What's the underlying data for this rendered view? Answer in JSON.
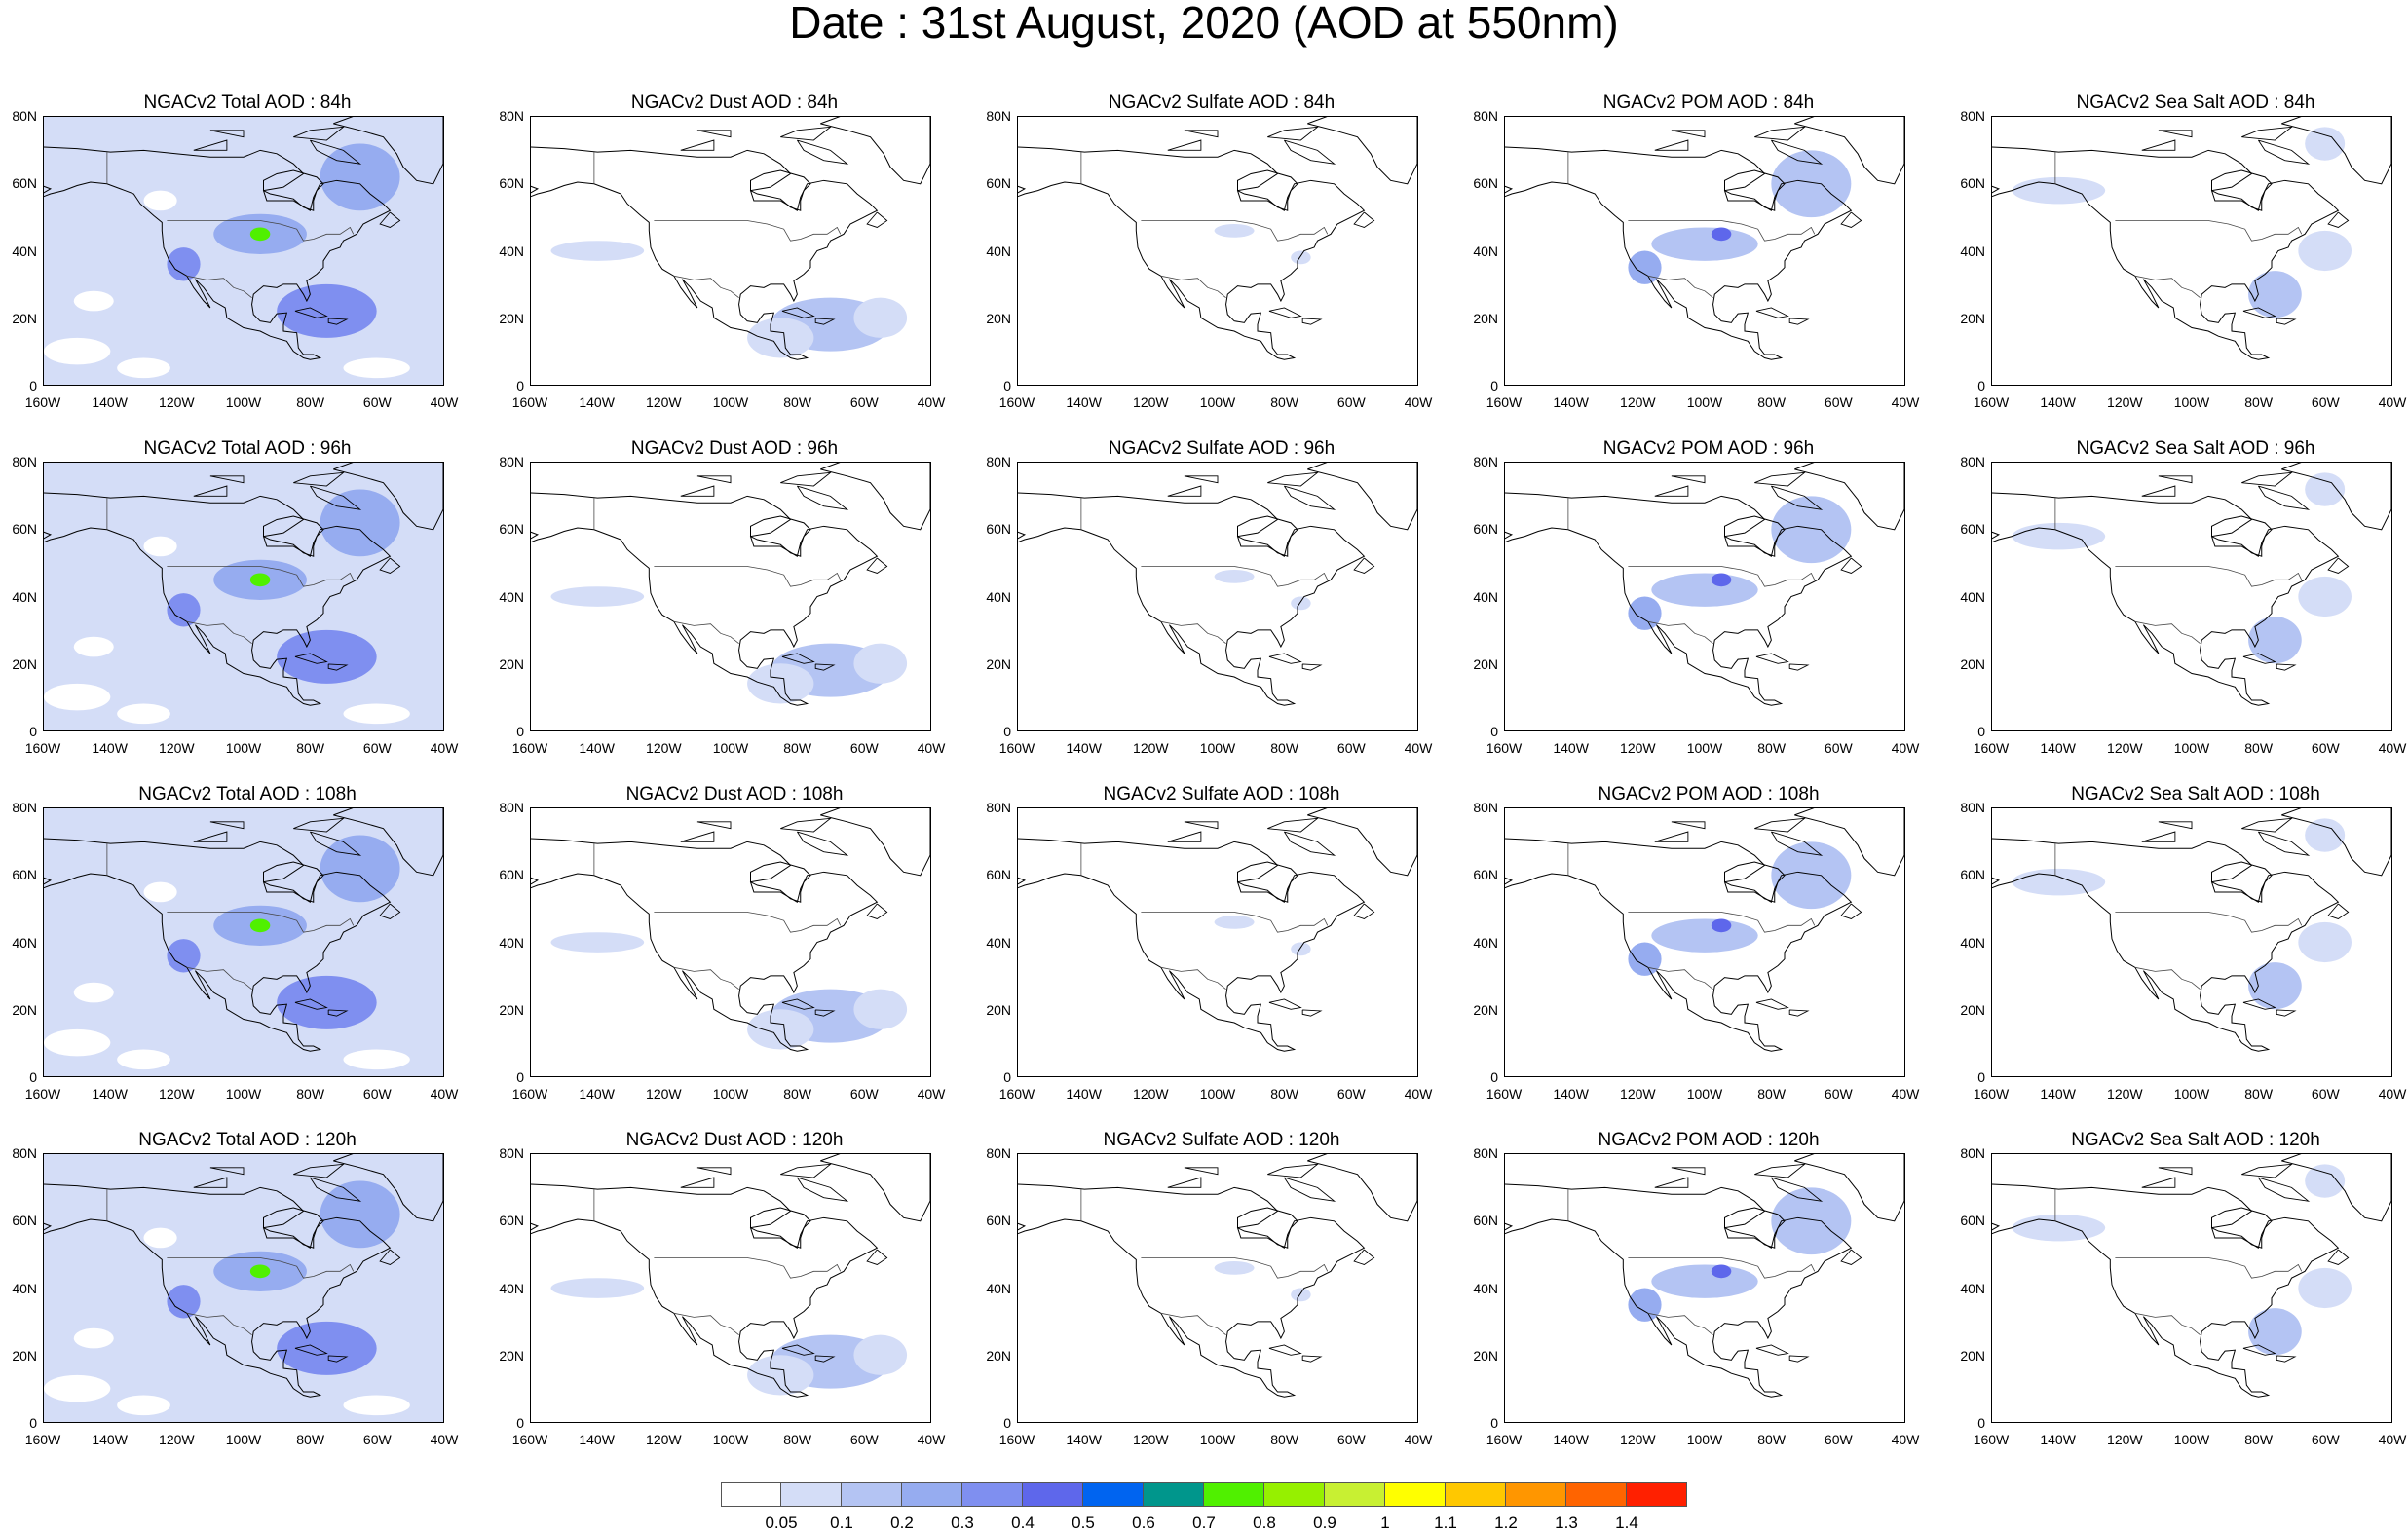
{
  "title": "Date : 31st August, 2020 (AOD at 550nm)",
  "lat_ticks": [
    "80N",
    "60N",
    "40N",
    "20N",
    "0"
  ],
  "lon_ticks": [
    "160W",
    "140W",
    "120W",
    "100W",
    "80W",
    "60W",
    "40W"
  ],
  "rows": [
    [
      "NGACv2 Total AOD : 84h",
      "NGACv2 Dust AOD : 84h",
      "NGACv2 Sulfate AOD : 84h",
      "NGACv2 POM AOD : 84h",
      "NGACv2 Sea Salt AOD : 84h"
    ],
    [
      "NGACv2 Total AOD : 96h",
      "NGACv2 Dust AOD : 96h",
      "NGACv2 Sulfate AOD : 96h",
      "NGACv2 POM AOD : 96h",
      "NGACv2 Sea Salt AOD : 96h"
    ],
    [
      "NGACv2 Total AOD : 108h",
      "NGACv2 Dust AOD : 108h",
      "NGACv2 Sulfate AOD : 108h",
      "NGACv2 POM AOD : 108h",
      "NGACv2 Sea Salt AOD : 108h"
    ],
    [
      "NGACv2 Total AOD : 120h",
      "NGACv2 Dust AOD : 120h",
      "NGACv2 Sulfate AOD : 120h",
      "NGACv2 POM AOD : 120h",
      "NGACv2 Sea Salt  AOD : 120h"
    ]
  ],
  "colorbar": {
    "labels": [
      "0.05",
      "0.1",
      "0.2",
      "0.3",
      "0.4",
      "0.5",
      "0.6",
      "0.7",
      "0.8",
      "0.9",
      "1",
      "1.1",
      "1.2",
      "1.3",
      "1.4"
    ],
    "colors": [
      "#ffffff",
      "#d4ddf7",
      "#b4c4f3",
      "#96acf0",
      "#7f8ff0",
      "#5e67eb",
      "#0064f0",
      "#00968c",
      "#50f000",
      "#96f000",
      "#c8f032",
      "#ffff00",
      "#ffc800",
      "#ff9600",
      "#ff6400",
      "#ff2000"
    ]
  },
  "fields": {
    "Total": {
      "bg": "#d4ddf7",
      "blobs": [
        [
          -95,
          45,
          14,
          6,
          "#96acf0"
        ],
        [
          -75,
          22,
          15,
          8,
          "#7f8ff0"
        ],
        [
          -65,
          62,
          12,
          10,
          "#96acf0"
        ],
        [
          -118,
          36,
          5,
          5,
          "#7f8ff0"
        ],
        [
          -95,
          45,
          3,
          2,
          "#50f000"
        ]
      ]
    },
    "Dust": {
      "bg": "#ffffff",
      "blobs": [
        [
          -70,
          18,
          18,
          8,
          "#b4c4f3"
        ],
        [
          -85,
          14,
          10,
          6,
          "#d4ddf7"
        ],
        [
          -55,
          20,
          8,
          6,
          "#d4ddf7"
        ],
        [
          -140,
          40,
          14,
          3,
          "#d4ddf7"
        ]
      ]
    },
    "Sulfate": {
      "bg": "#ffffff",
      "blobs": [
        [
          -95,
          46,
          6,
          2,
          "#d4ddf7"
        ],
        [
          -75,
          38,
          3,
          2,
          "#d4ddf7"
        ]
      ]
    },
    "POM": {
      "bg": "#ffffff",
      "blobs": [
        [
          -100,
          42,
          16,
          5,
          "#b4c4f3"
        ],
        [
          -68,
          60,
          12,
          10,
          "#b4c4f3"
        ],
        [
          -118,
          35,
          5,
          5,
          "#96acf0"
        ],
        [
          -95,
          45,
          3,
          2,
          "#5e67eb"
        ]
      ]
    },
    "SeaSalt": {
      "bg": "#ffffff",
      "blobs": [
        [
          -75,
          27,
          8,
          7,
          "#b4c4f3"
        ],
        [
          -140,
          58,
          14,
          4,
          "#d4ddf7"
        ],
        [
          -60,
          40,
          8,
          6,
          "#d4ddf7"
        ],
        [
          -60,
          72,
          6,
          5,
          "#d4ddf7"
        ]
      ]
    }
  }
}
